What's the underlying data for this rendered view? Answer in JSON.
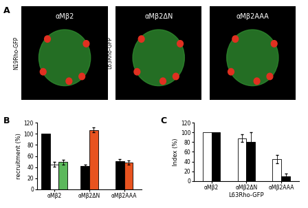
{
  "panel_labels": [
    "A",
    "B",
    "C"
  ],
  "images": [
    {
      "title": "αMβ2",
      "side_label": "N19Rho-GFP"
    },
    {
      "title": "αMβ2ΔN",
      "side_label": "L63Rho-GFP"
    },
    {
      "title": "αMβ2AAA"
    }
  ],
  "chart_data": [
    {
      "type": "bar",
      "ylabel": "recruitment (%)",
      "categories": [
        "αMβ2",
        "αMβ2ΔN",
        "αMβ2AAA"
      ],
      "ylim": [
        0,
        120
      ],
      "yticks": [
        0,
        20,
        40,
        60,
        80,
        100,
        120
      ],
      "grid": false,
      "series": [
        {
          "color": "#000000",
          "values": [
            100,
            42,
            51
          ],
          "errors": [
            null,
            2,
            4
          ]
        },
        {
          "color": "#ffffff",
          "values": [
            45,
            null,
            null
          ],
          "errors": [
            4,
            null,
            null
          ]
        },
        {
          "color": "#5cb85c",
          "values": [
            49,
            null,
            null
          ],
          "errors": [
            4,
            null,
            null
          ]
        },
        {
          "color": "#e8531f",
          "values": [
            null,
            107,
            48
          ],
          "errors": [
            null,
            4,
            4
          ]
        }
      ]
    },
    {
      "type": "bar",
      "ylabel": "Index (%)",
      "xlabel": "L63Rho-GFP",
      "categories": [
        "αMβ2",
        "αMβ2ΔN",
        "αMβ2AAA"
      ],
      "ylim": [
        0,
        120
      ],
      "yticks": [
        0,
        20,
        40,
        60,
        80,
        100,
        120
      ],
      "grid": false,
      "series": [
        {
          "color": "#ffffff",
          "values": [
            100,
            88,
            45
          ],
          "errors": [
            null,
            8,
            9
          ]
        },
        {
          "color": "#000000",
          "values": [
            100,
            80,
            10
          ],
          "errors": [
            null,
            20,
            5
          ]
        }
      ]
    }
  ]
}
